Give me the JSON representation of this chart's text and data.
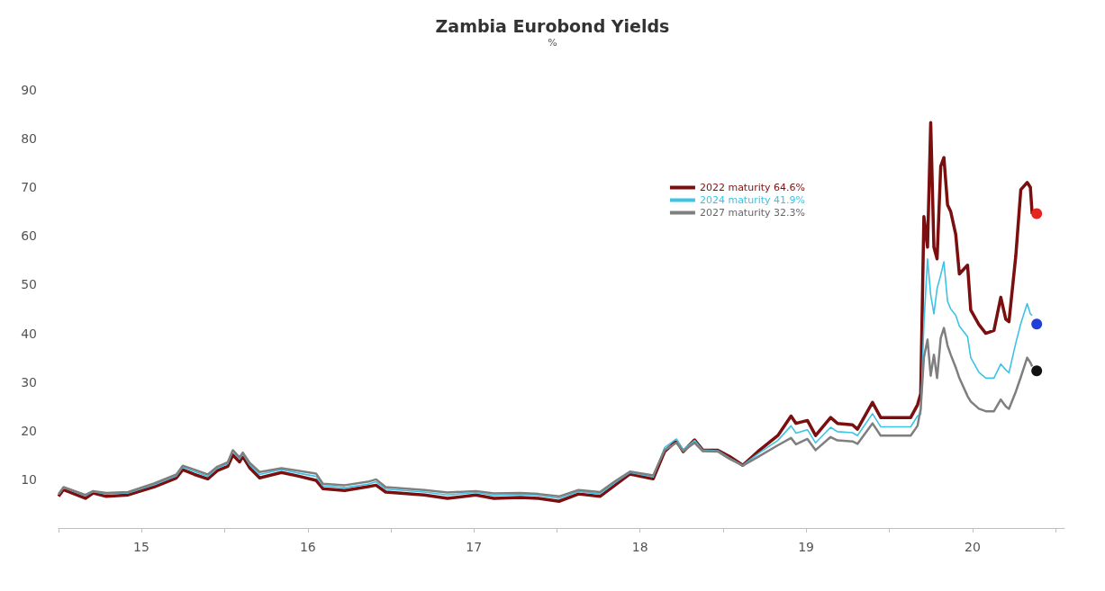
{
  "chart_data": {
    "type": "line",
    "title": "Zambia Eurobond Yields",
    "subtitle": "%",
    "x": [
      "2015-01-01",
      "2015-01-12",
      "2015-03-01",
      "2015-03-18",
      "2015-04-16",
      "2015-06-03",
      "2015-07-31",
      "2015-09-17",
      "2015-10-01",
      "2015-10-27",
      "2015-11-25",
      "2015-12-16",
      "2016-01-08",
      "2016-01-19",
      "2016-02-03",
      "2016-02-10",
      "2016-02-25",
      "2016-03-18",
      "2016-05-05",
      "2016-06-10",
      "2016-07-20",
      "2016-08-04",
      "2016-09-21",
      "2016-11-11",
      "2016-11-29",
      "2016-12-20",
      "2017-03-15",
      "2017-05-05",
      "2017-07-06",
      "2017-08-15",
      "2017-10-12",
      "2017-11-21",
      "2018-01-05",
      "2018-02-17",
      "2018-04-05",
      "2018-05-08",
      "2018-06-10",
      "2018-07-31",
      "2018-08-25",
      "2018-09-20",
      "2018-10-05",
      "2018-10-30",
      "2018-11-17",
      "2018-12-20",
      "2019-01-15",
      "2019-02-13",
      "2019-03-22",
      "2019-05-01",
      "2019-05-30",
      "2019-06-10",
      "2019-07-05",
      "2019-07-23",
      "2019-08-25",
      "2019-09-09",
      "2019-10-12",
      "2019-10-23",
      "2019-11-25",
      "2019-12-13",
      "2020-01-15",
      "2020-02-17",
      "2020-03-03",
      "2020-03-10",
      "2020-03-17",
      "2020-03-25",
      "2020-04-01",
      "2020-04-08",
      "2020-04-15",
      "2020-04-23",
      "2020-04-30",
      "2020-05-08",
      "2020-05-15",
      "2020-05-26",
      "2020-06-03",
      "2020-06-21",
      "2020-06-28",
      "2020-07-16",
      "2020-07-31",
      "2020-08-18",
      "2020-09-02",
      "2020-09-13",
      "2020-09-20",
      "2020-10-05",
      "2020-10-16",
      "2020-10-30",
      "2020-11-06",
      "2020-11-10"
    ],
    "series": [
      {
        "name": "2022 maturity 64.6%",
        "color": "#7b0f0f",
        "values": [
          6.5,
          7.9,
          6.1,
          7.2,
          6.5,
          6.8,
          8.5,
          10.3,
          12,
          11,
          10.1,
          11.8,
          12.7,
          15,
          13.6,
          14.7,
          12.4,
          10.3,
          11.4,
          10.7,
          9.8,
          8.1,
          7.7,
          8.5,
          8.8,
          7.4,
          6.8,
          6.1,
          6.8,
          6.1,
          6.3,
          6.1,
          5.5,
          7,
          6.5,
          8.8,
          11.1,
          10.1,
          15.7,
          17.9,
          15.7,
          18.1,
          16,
          16,
          14.7,
          12.9,
          16,
          19,
          23,
          21.5,
          22.1,
          19,
          22.7,
          21.5,
          21.2,
          20.3,
          25.8,
          22.7,
          22.7,
          22.7,
          25.3,
          27.6,
          64,
          57.7,
          83.3,
          57.7,
          55.3,
          74.3,
          76.1,
          66.4,
          65,
          60.3,
          52.2,
          54,
          44.8,
          41.8,
          40,
          40.6,
          47.4,
          42.9,
          42.4,
          55.9,
          69.5,
          71,
          70,
          64.5
        ]
      },
      {
        "name": "2024 maturity 41.9%",
        "color": "#3cc3e6",
        "values": [
          6.9,
          8.3,
          6.6,
          7.5,
          7,
          7.2,
          8.9,
          10.7,
          12.5,
          11.6,
          10.6,
          12.3,
          13.2,
          15.8,
          14.2,
          15.2,
          13,
          11,
          12,
          11.3,
          10.6,
          8.7,
          8.3,
          9,
          9.5,
          8,
          7.4,
          6.8,
          7.3,
          6.7,
          6.9,
          6.7,
          6.1,
          7.5,
          7,
          9.3,
          11.4,
          10.5,
          16.5,
          18.3,
          16,
          18,
          16,
          15.9,
          14.4,
          12.9,
          15.5,
          18,
          21,
          19.5,
          20.2,
          17.5,
          20.7,
          19.8,
          19.6,
          19,
          23.5,
          20.8,
          20.8,
          20.8,
          23,
          23.4,
          41.8,
          55.3,
          47.9,
          44,
          49.2,
          52,
          54.7,
          46.6,
          45,
          43.7,
          41.5,
          39.3,
          35,
          32,
          30.8,
          30.8,
          33.7,
          32.5,
          31.9,
          38,
          42,
          46.1,
          44,
          43.7
        ]
      },
      {
        "name": "2027 maturity 32.3%",
        "color": "#7f7f7f",
        "values": [
          7,
          8.4,
          6.8,
          7.6,
          7.2,
          7.4,
          9.2,
          11,
          12.8,
          12,
          11,
          12.6,
          13.5,
          16,
          14.5,
          15.5,
          13.4,
          11.5,
          12.3,
          11.8,
          11.2,
          9.1,
          8.8,
          9.5,
          10,
          8.4,
          7.8,
          7.3,
          7.6,
          7.1,
          7.2,
          7,
          6.5,
          7.8,
          7.4,
          9.6,
          11.6,
          10.8,
          16,
          17.5,
          15.8,
          17.5,
          15.8,
          15.7,
          14.2,
          12.8,
          14.8,
          17,
          18.5,
          17.2,
          18.3,
          16,
          18.7,
          18,
          17.8,
          17.3,
          21.5,
          19,
          19,
          19,
          21,
          24.5,
          35,
          38.7,
          31.3,
          35.6,
          30.8,
          39,
          41.1,
          37.5,
          35.6,
          33,
          30.8,
          27.1,
          26,
          24.5,
          24,
          24,
          26.4,
          25,
          24.5,
          28,
          31,
          35,
          34,
          33.2
        ]
      },
      {
        "type": "scatter",
        "marker": "circle",
        "color": "#e3241f",
        "x": [
          "2020-11-20"
        ],
        "values": [
          64.6
        ]
      },
      {
        "type": "scatter",
        "marker": "circle",
        "color": "#1f3fd6",
        "x": [
          "2020-11-20"
        ],
        "values": [
          41.9
        ]
      },
      {
        "type": "scatter",
        "marker": "circle",
        "color": "#111111",
        "x": [
          "2020-11-20"
        ],
        "values": [
          32.3
        ]
      }
    ],
    "xlim": [
      "2015-01-01",
      "2021-01-20"
    ],
    "xticks": [
      {
        "value": "2015-01-01",
        "label": null
      },
      {
        "value": "2015-07-02",
        "label": "15"
      },
      {
        "value": "2016-01-01",
        "label": null
      },
      {
        "value": "2016-07-02",
        "label": "16"
      },
      {
        "value": "2017-01-01",
        "label": null
      },
      {
        "value": "2017-07-02",
        "label": "17"
      },
      {
        "value": "2018-01-01",
        "label": null
      },
      {
        "value": "2018-07-02",
        "label": "18"
      },
      {
        "value": "2019-01-01",
        "label": null
      },
      {
        "value": "2019-07-02",
        "label": "19"
      },
      {
        "value": "2020-01-01",
        "label": null
      },
      {
        "value": "2020-07-02",
        "label": "20"
      },
      {
        "value": "2021-01-01",
        "label": null
      }
    ],
    "ylim": [
      0,
      90
    ],
    "yticks": [
      10,
      20,
      30,
      40,
      50,
      60,
      70,
      80,
      90
    ],
    "grid": false,
    "legend": "top right",
    "marker": "none",
    "line_style": "solid"
  }
}
